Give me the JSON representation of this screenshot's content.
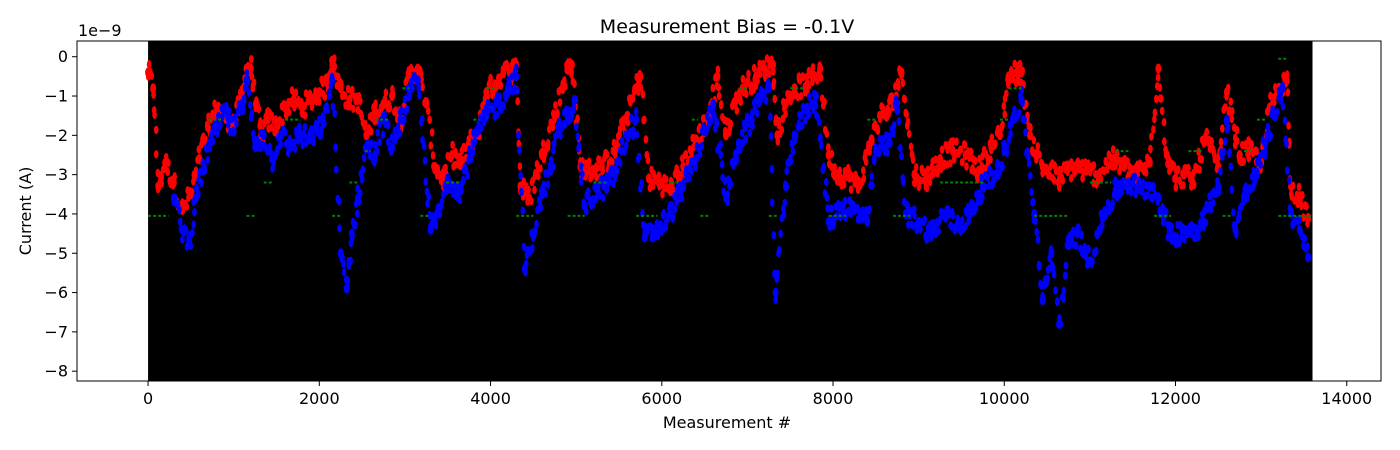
{
  "chart_data": {
    "type": "scatter",
    "title": "Measurement Bias = -0.1V",
    "xlabel": "Measurement #",
    "ylabel": "Current (A)",
    "y_offset_label": "1e−9",
    "xlim": [
      -830,
      14400
    ],
    "ylim": [
      -8.25,
      0.4
    ],
    "plot_background": "#000000",
    "grid": false,
    "x_ticks": [
      0,
      2000,
      4000,
      6000,
      8000,
      10000,
      12000,
      14000
    ],
    "x_tick_labels": [
      "0",
      "2000",
      "4000",
      "6000",
      "8000",
      "10000",
      "12000",
      "14000"
    ],
    "y_ticks": [
      0,
      -1,
      -2,
      -3,
      -4,
      -5,
      -6,
      -7,
      -8
    ],
    "y_tick_labels": [
      "0",
      "−1",
      "−2",
      "−3",
      "−4",
      "−5",
      "−6",
      "−7",
      "−8"
    ],
    "data_x_range": [
      0,
      13600
    ],
    "series": [
      {
        "color": "#ff0000",
        "trace": [
          [
            0,
            -0.4
          ],
          [
            60,
            -0.8
          ],
          [
            120,
            -3.3
          ],
          [
            200,
            -2.7
          ],
          [
            300,
            -3.2
          ],
          [
            400,
            -3.9
          ],
          [
            500,
            -3.5
          ],
          [
            600,
            -2.6
          ],
          [
            700,
            -1.8
          ],
          [
            800,
            -1.3
          ],
          [
            900,
            -1.5
          ],
          [
            1000,
            -1.7
          ],
          [
            1100,
            -1.0
          ],
          [
            1150,
            -0.3
          ],
          [
            1200,
            -0.3
          ],
          [
            1260,
            -1.2
          ],
          [
            1320,
            -2.0
          ],
          [
            1400,
            -1.6
          ],
          [
            1500,
            -1.8
          ],
          [
            1600,
            -1.3
          ],
          [
            1700,
            -1.1
          ],
          [
            1800,
            -1.3
          ],
          [
            1900,
            -1.1
          ],
          [
            2000,
            -0.9
          ],
          [
            2100,
            -0.7
          ],
          [
            2150,
            -0.1
          ],
          [
            2250,
            -0.8
          ],
          [
            2350,
            -1.1
          ],
          [
            2450,
            -1.1
          ],
          [
            2550,
            -2.0
          ],
          [
            2650,
            -1.4
          ],
          [
            2750,
            -1.2
          ],
          [
            2850,
            -1.0
          ],
          [
            2950,
            -1.6
          ],
          [
            3050,
            -0.5
          ],
          [
            3150,
            -0.3
          ],
          [
            3250,
            -1.2
          ],
          [
            3350,
            -2.8
          ],
          [
            3450,
            -3.1
          ],
          [
            3550,
            -2.5
          ],
          [
            3650,
            -2.7
          ],
          [
            3750,
            -2.2
          ],
          [
            3850,
            -1.9
          ],
          [
            3950,
            -0.9
          ],
          [
            4050,
            -0.7
          ],
          [
            4150,
            -0.4
          ],
          [
            4250,
            -0.4
          ],
          [
            4300,
            -0.2
          ],
          [
            4350,
            -3.3
          ],
          [
            4450,
            -3.6
          ],
          [
            4600,
            -2.5
          ],
          [
            4750,
            -1.5
          ],
          [
            4850,
            -0.7
          ],
          [
            4900,
            -0.3
          ],
          [
            4950,
            -0.2
          ],
          [
            5050,
            -2.8
          ],
          [
            5150,
            -2.9
          ],
          [
            5300,
            -2.8
          ],
          [
            5450,
            -2.4
          ],
          [
            5600,
            -1.5
          ],
          [
            5700,
            -0.8
          ],
          [
            5750,
            -0.5
          ],
          [
            5850,
            -3.1
          ],
          [
            6000,
            -3.2
          ],
          [
            6100,
            -3.4
          ],
          [
            6250,
            -2.8
          ],
          [
            6400,
            -2.1
          ],
          [
            6550,
            -1.5
          ],
          [
            6650,
            -0.5
          ],
          [
            6750,
            -2.0
          ],
          [
            6850,
            -1.2
          ],
          [
            6950,
            -0.8
          ],
          [
            7100,
            -0.5
          ],
          [
            7200,
            -0.3
          ],
          [
            7300,
            -0.2
          ],
          [
            7350,
            -2.0
          ],
          [
            7450,
            -1.2
          ],
          [
            7550,
            -0.8
          ],
          [
            7700,
            -0.7
          ],
          [
            7850,
            -0.3
          ],
          [
            7950,
            -2.5
          ],
          [
            8050,
            -3.0
          ],
          [
            8150,
            -3.0
          ],
          [
            8300,
            -3.3
          ],
          [
            8450,
            -2.1
          ],
          [
            8550,
            -1.5
          ],
          [
            8650,
            -1.4
          ],
          [
            8800,
            -0.4
          ],
          [
            8950,
            -3.0
          ],
          [
            9100,
            -3.1
          ],
          [
            9250,
            -2.6
          ],
          [
            9400,
            -2.4
          ],
          [
            9550,
            -2.5
          ],
          [
            9700,
            -2.9
          ],
          [
            9850,
            -2.3
          ],
          [
            9950,
            -2.0
          ],
          [
            10050,
            -0.5
          ],
          [
            10150,
            -0.4
          ],
          [
            10200,
            -0.4
          ],
          [
            10300,
            -2.0
          ],
          [
            10450,
            -2.8
          ],
          [
            10650,
            -3.1
          ],
          [
            10800,
            -2.8
          ],
          [
            10950,
            -2.9
          ],
          [
            11100,
            -3.0
          ],
          [
            11250,
            -2.6
          ],
          [
            11400,
            -2.8
          ],
          [
            11550,
            -3.0
          ],
          [
            11700,
            -2.7
          ],
          [
            11800,
            -0.3
          ],
          [
            11900,
            -2.5
          ],
          [
            12000,
            -3.1
          ],
          [
            12100,
            -3.0
          ],
          [
            12200,
            -3.2
          ],
          [
            12350,
            -2.1
          ],
          [
            12500,
            -2.8
          ],
          [
            12600,
            -0.9
          ],
          [
            12750,
            -2.5
          ],
          [
            12850,
            -2.4
          ],
          [
            13000,
            -2.7
          ],
          [
            13100,
            -1.3
          ],
          [
            13200,
            -0.8
          ],
          [
            13300,
            -0.6
          ],
          [
            13350,
            -3.3
          ],
          [
            13450,
            -3.6
          ],
          [
            13550,
            -4.1
          ]
        ]
      },
      {
        "color": "#0000ff",
        "trace": [
          [
            300,
            -3.6
          ],
          [
            400,
            -4.4
          ],
          [
            480,
            -4.7
          ],
          [
            560,
            -3.6
          ],
          [
            640,
            -2.9
          ],
          [
            720,
            -2.2
          ],
          [
            800,
            -1.9
          ],
          [
            900,
            -1.4
          ],
          [
            1000,
            -1.9
          ],
          [
            1100,
            -1.2
          ],
          [
            1150,
            -0.6
          ],
          [
            1250,
            -2.3
          ],
          [
            1350,
            -2.0
          ],
          [
            1450,
            -2.6
          ],
          [
            1550,
            -2.0
          ],
          [
            1650,
            -2.3
          ],
          [
            1750,
            -2.0
          ],
          [
            1900,
            -2.1
          ],
          [
            2050,
            -1.7
          ],
          [
            2150,
            -0.6
          ],
          [
            2250,
            -5.0
          ],
          [
            2320,
            -5.9
          ],
          [
            2380,
            -4.5
          ],
          [
            2450,
            -3.6
          ],
          [
            2550,
            -2.3
          ],
          [
            2650,
            -2.5
          ],
          [
            2750,
            -1.6
          ],
          [
            2850,
            -2.3
          ],
          [
            2950,
            -1.6
          ],
          [
            3050,
            -1.0
          ],
          [
            3150,
            -0.6
          ],
          [
            3300,
            -4.4
          ],
          [
            3400,
            -4.0
          ],
          [
            3500,
            -3.1
          ],
          [
            3650,
            -3.4
          ],
          [
            3800,
            -2.2
          ],
          [
            3950,
            -1.5
          ],
          [
            4100,
            -1.2
          ],
          [
            4200,
            -0.8
          ],
          [
            4300,
            -0.5
          ],
          [
            4400,
            -5.4
          ],
          [
            4500,
            -4.5
          ],
          [
            4600,
            -3.5
          ],
          [
            4700,
            -2.9
          ],
          [
            4800,
            -1.9
          ],
          [
            4900,
            -1.5
          ],
          [
            4980,
            -1.1
          ],
          [
            5100,
            -3.8
          ],
          [
            5250,
            -3.4
          ],
          [
            5350,
            -3.3
          ],
          [
            5450,
            -3.0
          ],
          [
            5600,
            -2.0
          ],
          [
            5700,
            -1.6
          ],
          [
            5800,
            -4.6
          ],
          [
            5950,
            -4.4
          ],
          [
            6100,
            -4.0
          ],
          [
            6250,
            -3.3
          ],
          [
            6400,
            -2.6
          ],
          [
            6500,
            -1.9
          ],
          [
            6600,
            -1.2
          ],
          [
            6750,
            -3.6
          ],
          [
            6900,
            -2.2
          ],
          [
            7050,
            -1.6
          ],
          [
            7150,
            -1.0
          ],
          [
            7250,
            -0.8
          ],
          [
            7330,
            -6.0
          ],
          [
            7450,
            -3.3
          ],
          [
            7550,
            -2.0
          ],
          [
            7700,
            -1.3
          ],
          [
            7800,
            -1.0
          ],
          [
            7950,
            -4.2
          ],
          [
            8100,
            -3.8
          ],
          [
            8250,
            -3.9
          ],
          [
            8400,
            -4.2
          ],
          [
            8500,
            -2.4
          ],
          [
            8650,
            -2.2
          ],
          [
            8750,
            -1.2
          ],
          [
            8850,
            -4.0
          ],
          [
            9000,
            -4.2
          ],
          [
            9150,
            -4.5
          ],
          [
            9300,
            -4.0
          ],
          [
            9450,
            -4.3
          ],
          [
            9600,
            -4.0
          ],
          [
            9750,
            -3.3
          ],
          [
            9900,
            -3.0
          ],
          [
            10000,
            -2.4
          ],
          [
            10100,
            -1.6
          ],
          [
            10200,
            -1.1
          ],
          [
            10350,
            -4.0
          ],
          [
            10450,
            -6.2
          ],
          [
            10550,
            -5.0
          ],
          [
            10650,
            -6.8
          ],
          [
            10750,
            -4.8
          ],
          [
            10850,
            -4.5
          ],
          [
            11000,
            -5.2
          ],
          [
            11150,
            -4.1
          ],
          [
            11300,
            -3.4
          ],
          [
            11450,
            -3.2
          ],
          [
            11600,
            -3.4
          ],
          [
            11700,
            -3.3
          ],
          [
            11800,
            -3.6
          ],
          [
            11950,
            -4.6
          ],
          [
            12100,
            -4.4
          ],
          [
            12250,
            -4.4
          ],
          [
            12400,
            -3.8
          ],
          [
            12500,
            -3.3
          ],
          [
            12600,
            -1.6
          ],
          [
            12700,
            -4.4
          ],
          [
            12800,
            -3.6
          ],
          [
            12950,
            -3.0
          ],
          [
            13050,
            -2.2
          ],
          [
            13150,
            -1.5
          ],
          [
            13250,
            -0.8
          ],
          [
            13350,
            -4.0
          ],
          [
            13450,
            -4.4
          ],
          [
            13550,
            -5.1
          ]
        ]
      },
      {
        "color": "#008000",
        "segments": [
          [
            0,
            240,
            -4.05
          ],
          [
            700,
            870,
            -1.6
          ],
          [
            1150,
            1250,
            -4.05
          ],
          [
            1350,
            1450,
            -3.2
          ],
          [
            1600,
            1780,
            -1.6
          ],
          [
            2150,
            2250,
            -4.05
          ],
          [
            2350,
            2450,
            -3.2
          ],
          [
            2530,
            2600,
            -2.4
          ],
          [
            2650,
            2820,
            -1.6
          ],
          [
            2970,
            3050,
            -0.8
          ],
          [
            3180,
            3280,
            -4.05
          ],
          [
            3480,
            3650,
            -3.2
          ],
          [
            3800,
            3870,
            -1.6
          ],
          [
            3950,
            4070,
            -0.8
          ],
          [
            4300,
            4500,
            -4.05
          ],
          [
            4900,
            5100,
            -4.05
          ],
          [
            5200,
            5350,
            -3.2
          ],
          [
            5700,
            5950,
            -4.05
          ],
          [
            6100,
            6200,
            -3.2
          ],
          [
            6350,
            6420,
            -1.6
          ],
          [
            6450,
            6550,
            -4.05
          ],
          [
            6900,
            7000,
            -0.8
          ],
          [
            7250,
            7350,
            -4.05
          ],
          [
            7500,
            7650,
            -0.8
          ],
          [
            7950,
            8150,
            -4.05
          ],
          [
            8400,
            8500,
            -1.6
          ],
          [
            8700,
            8900,
            -4.05
          ],
          [
            9250,
            9600,
            -3.2
          ],
          [
            9600,
            9750,
            -3.2
          ],
          [
            9950,
            10050,
            -1.6
          ],
          [
            10050,
            10200,
            -0.8
          ],
          [
            10350,
            10750,
            -4.05
          ],
          [
            11000,
            11250,
            -3.2
          ],
          [
            11300,
            11450,
            -2.4
          ],
          [
            11750,
            11950,
            -4.05
          ],
          [
            12150,
            12300,
            -2.4
          ],
          [
            12550,
            12650,
            -4.05
          ],
          [
            12800,
            12900,
            -2.4
          ],
          [
            12950,
            13050,
            -1.6
          ],
          [
            13200,
            13600,
            -4.05
          ],
          [
            13200,
            13300,
            -0.05
          ]
        ]
      }
    ]
  }
}
